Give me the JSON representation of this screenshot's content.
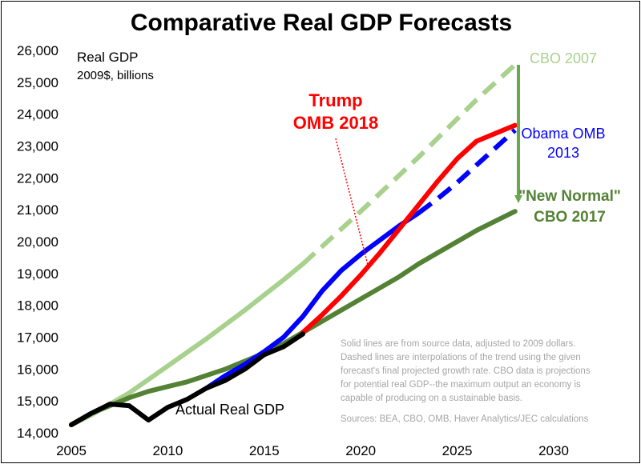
{
  "chart_data": {
    "type": "line",
    "title": "Comparative Real GDP Forecasts",
    "ylabel": "Real GDP",
    "ylabel_sub": "2009$, billions",
    "xlim": [
      2005,
      2030
    ],
    "ylim": [
      14000,
      26000
    ],
    "x_ticks": [
      "2005",
      "2010",
      "2015",
      "2020",
      "2025",
      "2030"
    ],
    "y_ticks": [
      "14,000",
      "15,000",
      "16,000",
      "17,000",
      "18,000",
      "19,000",
      "20,000",
      "21,000",
      "22,000",
      "23,000",
      "24,000",
      "25,000",
      "26,000"
    ],
    "series": [
      {
        "key": "cbo2007",
        "name": "CBO 2007",
        "color": "#a9d18e",
        "solid": [
          [
            2005,
            14250
          ],
          [
            2006,
            14550
          ],
          [
            2008,
            15250
          ],
          [
            2010,
            16100
          ],
          [
            2012,
            16950
          ],
          [
            2014,
            17850
          ],
          [
            2016,
            18800
          ],
          [
            2017,
            19300
          ]
        ],
        "dashed": [
          [
            2017,
            19300
          ],
          [
            2020,
            20950
          ],
          [
            2023,
            22650
          ],
          [
            2026,
            24450
          ],
          [
            2028,
            25550
          ]
        ]
      },
      {
        "key": "cbo2017",
        "name": "\"New Normal\" CBO 2017",
        "label_lines": [
          "\"New Normal\"",
          "CBO 2017"
        ],
        "color": "#548235",
        "solid": [
          [
            2005,
            14250
          ],
          [
            2006,
            14600
          ],
          [
            2007,
            14850
          ],
          [
            2008,
            15100
          ],
          [
            2009,
            15300
          ],
          [
            2010,
            15450
          ],
          [
            2011,
            15600
          ],
          [
            2012,
            15800
          ],
          [
            2013,
            16000
          ],
          [
            2014,
            16250
          ],
          [
            2015,
            16500
          ],
          [
            2016,
            16800
          ],
          [
            2017,
            17150
          ],
          [
            2018,
            17500
          ],
          [
            2019,
            17850
          ],
          [
            2020,
            18200
          ],
          [
            2021,
            18550
          ],
          [
            2022,
            18900
          ],
          [
            2023,
            19300
          ],
          [
            2024,
            19650
          ],
          [
            2025,
            20000
          ],
          [
            2026,
            20350
          ],
          [
            2027,
            20650
          ],
          [
            2028,
            20950
          ]
        ],
        "dashed": []
      },
      {
        "key": "obama2013",
        "name": "Obama OMB 2013",
        "label_lines": [
          "Obama OMB",
          "2013"
        ],
        "color": "#0000ff",
        "solid": [
          [
            2012,
            15400
          ],
          [
            2013,
            15800
          ],
          [
            2014,
            16150
          ],
          [
            2015,
            16550
          ],
          [
            2016,
            17000
          ],
          [
            2017,
            17650
          ],
          [
            2018,
            18450
          ],
          [
            2019,
            19100
          ],
          [
            2020,
            19600
          ],
          [
            2021,
            20050
          ],
          [
            2022,
            20500
          ],
          [
            2023,
            20900
          ]
        ],
        "dashed": [
          [
            2023,
            20900
          ],
          [
            2024,
            21350
          ],
          [
            2025,
            21850
          ],
          [
            2026,
            22400
          ],
          [
            2027,
            22950
          ],
          [
            2028,
            23500
          ]
        ]
      },
      {
        "key": "trump2018",
        "name": "Trump OMB 2018",
        "label_lines": [
          "Trump",
          "OMB 2018"
        ],
        "color": "#ff0000",
        "solid": [
          [
            2017,
            17150
          ],
          [
            2018,
            17700
          ],
          [
            2019,
            18300
          ],
          [
            2020,
            18950
          ],
          [
            2021,
            19650
          ],
          [
            2022,
            20400
          ],
          [
            2023,
            21150
          ],
          [
            2024,
            21900
          ],
          [
            2025,
            22600
          ],
          [
            2026,
            23150
          ],
          [
            2028,
            23650
          ]
        ],
        "dashed": []
      },
      {
        "key": "actual",
        "name": "Actual Real GDP",
        "color": "#000000",
        "solid": [
          [
            2005,
            14250
          ],
          [
            2006,
            14600
          ],
          [
            2007,
            14900
          ],
          [
            2008,
            14850
          ],
          [
            2009,
            14400
          ],
          [
            2010,
            14800
          ],
          [
            2011,
            15050
          ],
          [
            2012,
            15400
          ],
          [
            2013,
            15650
          ],
          [
            2014,
            16000
          ],
          [
            2015,
            16450
          ],
          [
            2016,
            16700
          ],
          [
            2017,
            17100
          ]
        ],
        "dashed": []
      }
    ],
    "note_lines": [
      "Solid lines are from source data, adjusted to 2009 dollars.",
      "Dashed lines are interpolations of the trend using the given",
      "forecast's final projected growth rate. CBO data is projections",
      "for potential real GDP--the maximum output an economy is",
      "capable of producing on a sustainable basis.",
      "Sources: BEA, CBO, OMB, Haver Analytics/JEC calculations"
    ]
  }
}
